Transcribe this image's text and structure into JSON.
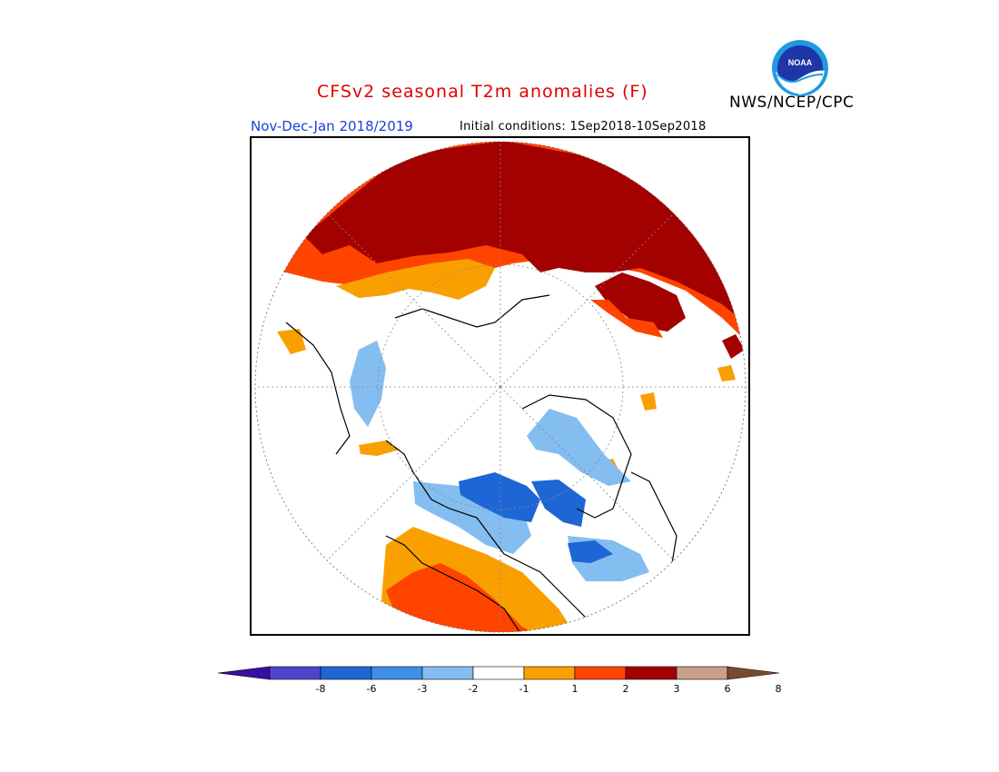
{
  "header": {
    "title": "CFSv2 seasonal T2m anomalies (F)",
    "agency": "NWS/NCEP/CPC",
    "season": "Nov-Dec-Jan 2018/2019",
    "initial_conditions": "Initial conditions: 1Sep2018-10Sep2018"
  },
  "logo": {
    "text": "NOAA",
    "icon": "noaa-logo-icon"
  },
  "colorbar": {
    "labels": [
      "-8",
      "-6",
      "-3",
      "-2",
      "-1",
      "1",
      "2",
      "3",
      "6",
      "8"
    ],
    "colors": [
      "#3a0ea5",
      "#4d45cc",
      "#1e66d6",
      "#3f8ee8",
      "#84bdf0",
      "#ffffff",
      "#f9a000",
      "#ff4400",
      "#a30000",
      "#c8a08a",
      "#7a4a30"
    ]
  },
  "map": {
    "projection": "north-polar-stereographic",
    "legend_colors": {
      "warm_1_2": "#f9a000",
      "warm_2_3": "#ff4400",
      "warm_3_6": "#a30000",
      "cool_1_2": "#84bdf0",
      "cool_2_3": "#3f8ee8",
      "cool_3_6": "#1e66d6"
    }
  }
}
